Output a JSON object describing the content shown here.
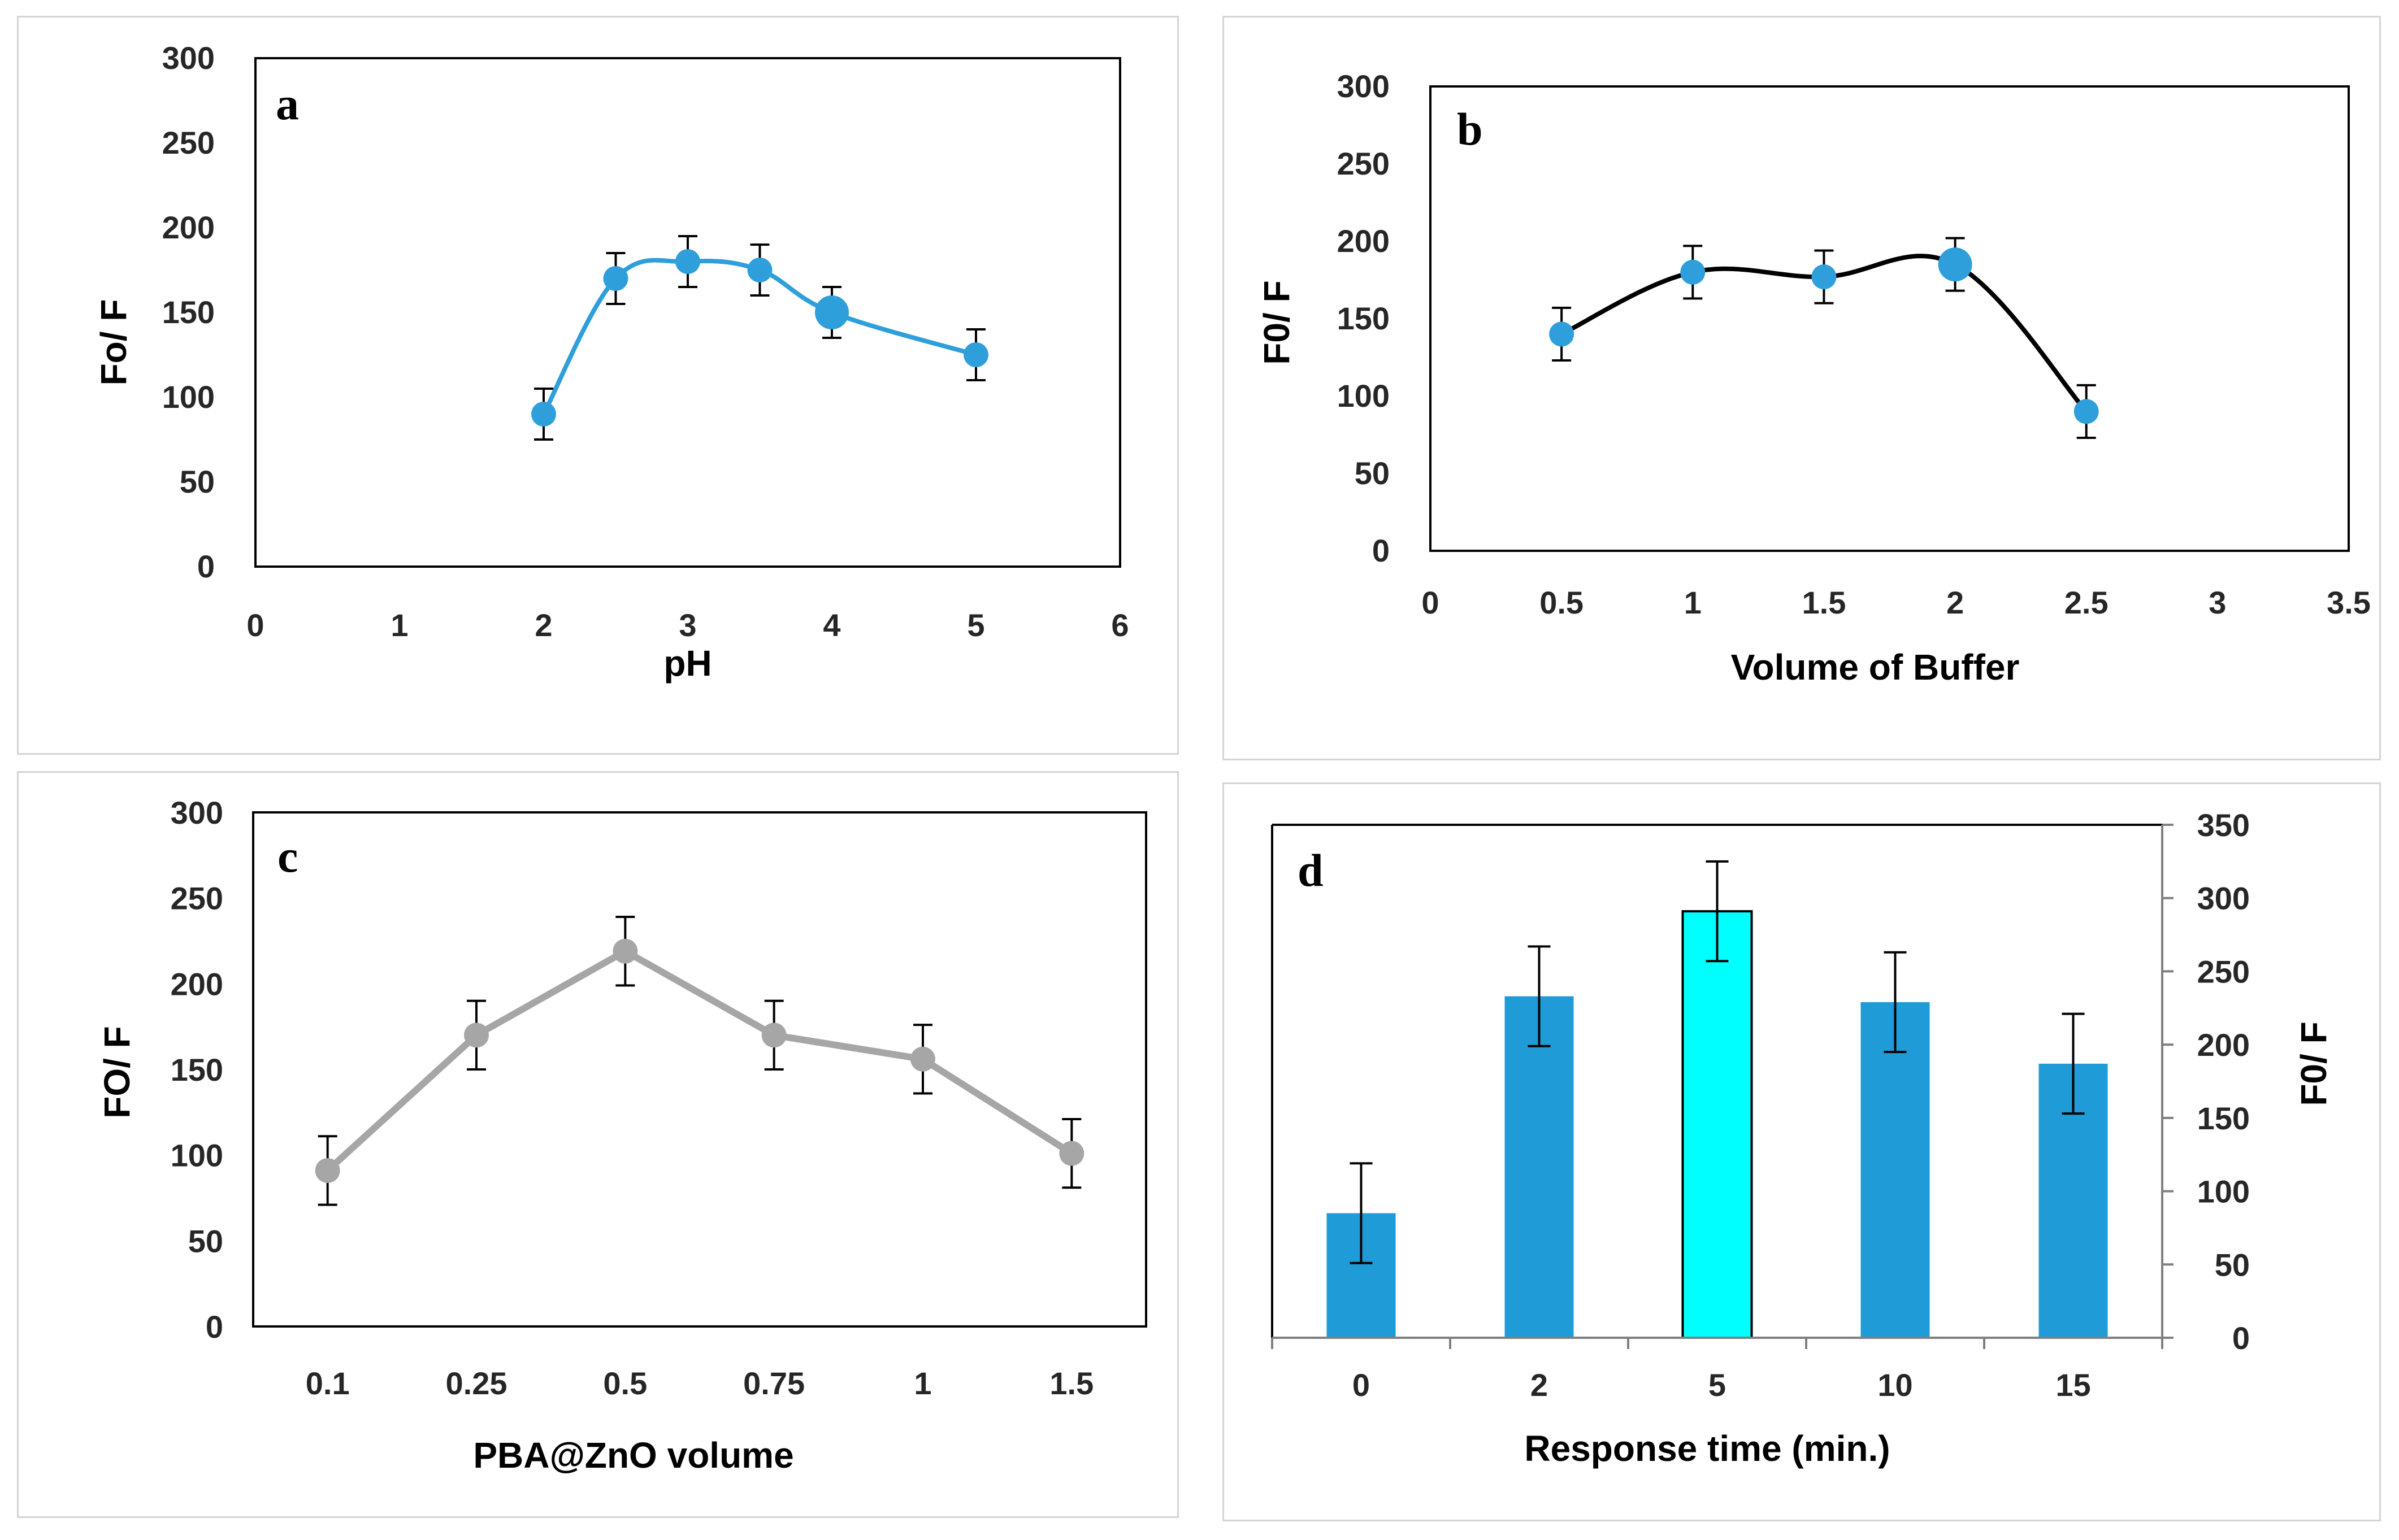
{
  "chart_data": [
    {
      "panel": "a",
      "type": "line",
      "smooth": true,
      "color": "#2e9fdb",
      "xlabel": "pH",
      "ylabel": "Fo/ F",
      "xlim": [
        0,
        6
      ],
      "ylim": [
        0,
        300
      ],
      "xticks": [
        "0",
        "1",
        "2",
        "3",
        "4",
        "5",
        "6"
      ],
      "yticks": [
        "0",
        "50",
        "100",
        "150",
        "200",
        "250",
        "300"
      ],
      "x": [
        2,
        2.5,
        3,
        3.5,
        4,
        5
      ],
      "values": [
        90,
        170,
        180,
        175,
        150,
        125
      ],
      "errors": [
        15,
        15,
        15,
        15,
        15,
        15
      ]
    },
    {
      "panel": "b",
      "type": "line",
      "smooth": true,
      "color": "#2e9fdb",
      "line_color": "#000000",
      "xlabel": "Volume of Buffer",
      "ylabel": "F0/ F",
      "xlim": [
        0,
        3.5
      ],
      "ylim": [
        0,
        300
      ],
      "xticks": [
        "0",
        "0.5",
        "1",
        "1.5",
        "2",
        "2.5",
        "3",
        "3.5"
      ],
      "yticks": [
        "0",
        "50",
        "100",
        "150",
        "200",
        "250",
        "300"
      ],
      "x": [
        0.5,
        1,
        1.5,
        2,
        2.5
      ],
      "values": [
        140,
        180,
        177,
        185,
        90
      ],
      "errors": [
        17,
        17,
        17,
        17,
        17
      ]
    },
    {
      "panel": "c",
      "type": "line",
      "smooth": false,
      "color": "#a6a6a6",
      "xlabel": "PBA@ZnO volume",
      "ylabel": "FO/ F",
      "ylim": [
        0,
        300
      ],
      "categories": [
        "0.1",
        "0.25",
        "0.5",
        "0.75",
        "1",
        "1.5"
      ],
      "yticks": [
        "0",
        "50",
        "100",
        "150",
        "200",
        "250",
        "300"
      ],
      "values": [
        91,
        170,
        219,
        170,
        156,
        101
      ],
      "errors": [
        20,
        20,
        20,
        20,
        20,
        20
      ]
    },
    {
      "panel": "d",
      "type": "bar",
      "color": "#1f9bd7",
      "highlight_color": "#00ffff",
      "highlight_index": 2,
      "xlabel": "Response time (min.)",
      "ylabel": "F0/ F",
      "yaxis_side": "right",
      "ylim": [
        0,
        350
      ],
      "categories": [
        "0",
        "2",
        "5",
        "10",
        "15"
      ],
      "yticks": [
        "0",
        "50",
        "100",
        "150",
        "200",
        "250",
        "300",
        "350"
      ],
      "values": [
        85,
        233,
        291,
        229,
        187
      ],
      "errors": [
        34,
        34,
        34,
        34,
        34
      ]
    }
  ],
  "panel_labels": {
    "a": "a",
    "b": "b",
    "c": "c",
    "d": "d"
  }
}
